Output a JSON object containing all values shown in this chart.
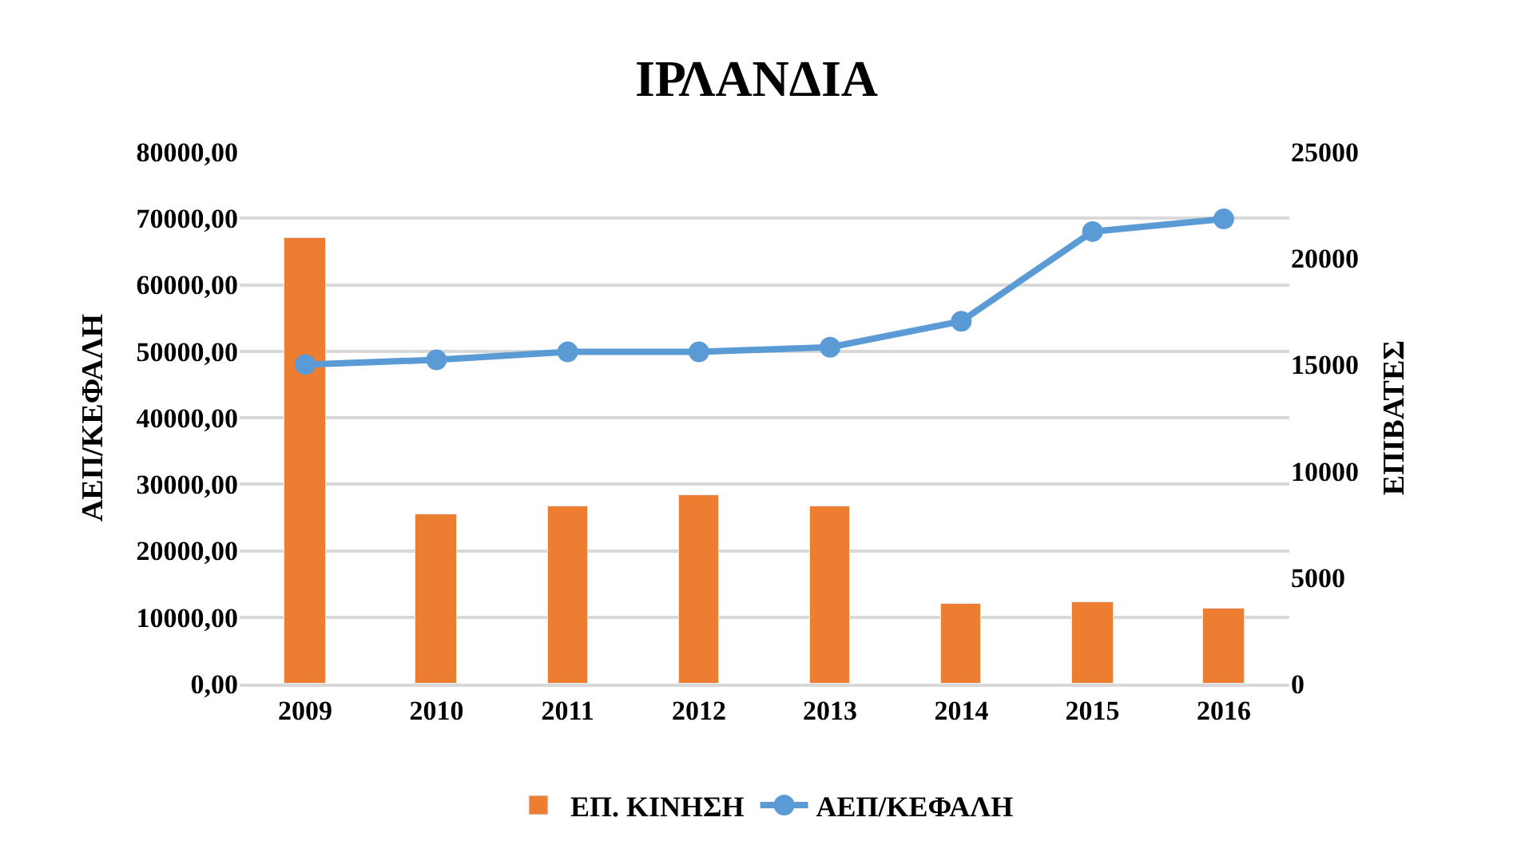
{
  "chart_data": {
    "type": "bar",
    "title": "ΙΡΛΑΝΔΙΑ",
    "ylabel": "ΑΕΠ/ΚΕΦΑΛΗ",
    "y2label": "ΕΠΙΒΑΤΕΣ",
    "categories": [
      "2009",
      "2010",
      "2011",
      "2012",
      "2013",
      "2014",
      "2015",
      "2016"
    ],
    "series": [
      {
        "name": "ΕΠ. ΚΙΝΗΣΗ",
        "axis": "y2",
        "color": "#ed7d31",
        "values": [
          20970,
          7940,
          8320,
          8880,
          8320,
          3760,
          3810,
          3550
        ]
      },
      {
        "name": "ΑΕΠ/ΚΕΦΑΛΗ",
        "type": "line",
        "color": "#5b9bd5",
        "marker": "circle",
        "line_style": "solid",
        "values": [
          48000,
          48700,
          49900,
          49900,
          50600,
          54500,
          68000,
          69900
        ]
      }
    ],
    "ylim": [
      0,
      80000
    ],
    "yticks": [
      {
        "value": 0,
        "label": "0,00"
      },
      {
        "value": 10000,
        "label": "10000,00"
      },
      {
        "value": 20000,
        "label": "20000,00"
      },
      {
        "value": 30000,
        "label": "30000,00"
      },
      {
        "value": 40000,
        "label": "40000,00"
      },
      {
        "value": 50000,
        "label": "50000,00"
      },
      {
        "value": 60000,
        "label": "60000,00"
      },
      {
        "value": 70000,
        "label": "70000,00"
      },
      {
        "value": 80000,
        "label": "80000,00"
      }
    ],
    "y2lim": [
      0,
      25000
    ],
    "y2ticks": [
      0,
      5000,
      10000,
      15000,
      20000,
      25000
    ],
    "grid": "y",
    "legend": "bottom"
  }
}
